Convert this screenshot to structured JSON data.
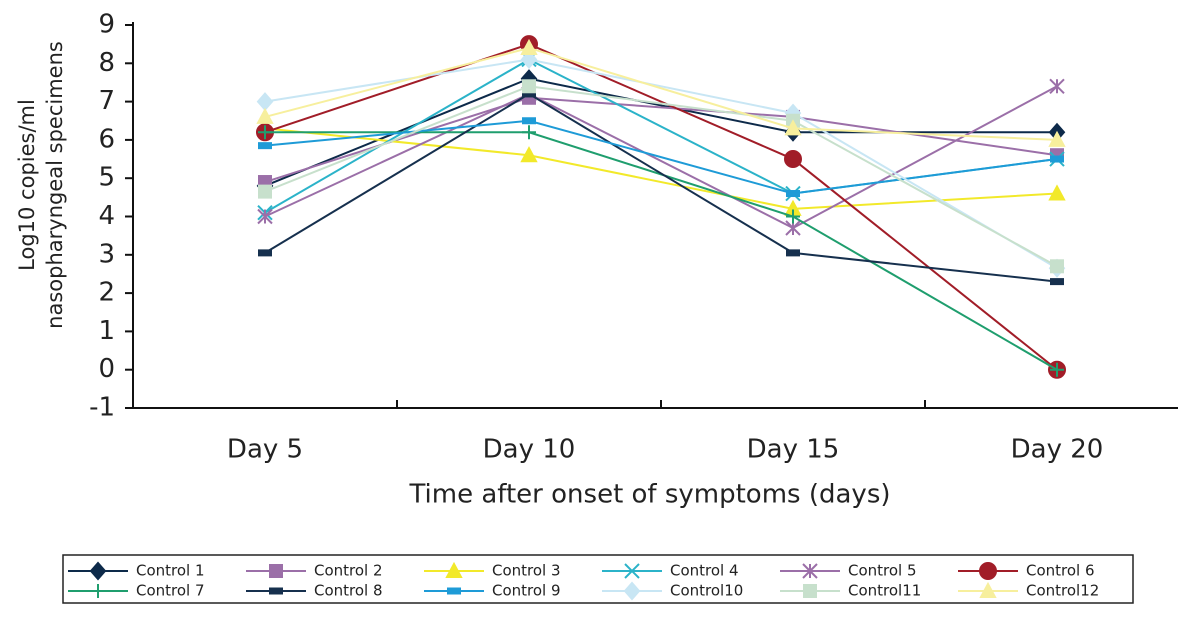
{
  "chart_data": {
    "type": "line",
    "ylabel": [
      "Log10 copies/ml",
      "nasopharyngeal specimens"
    ],
    "xlabel": "Time after onset of symptoms (days)",
    "categories": [
      "Day 5",
      "Day 10",
      "Day 15",
      "Day 20"
    ],
    "ylim": [
      -1,
      9
    ],
    "yticks": [
      -1,
      0,
      1,
      2,
      3,
      4,
      5,
      6,
      7,
      8,
      9
    ],
    "series": [
      {
        "name": "Control 1",
        "color": "#0d2a4a",
        "marker": "diamond",
        "values": [
          4.8,
          7.6,
          6.2,
          6.2
        ]
      },
      {
        "name": "Control 2",
        "color": "#9b6fa8",
        "marker": "square",
        "values": [
          4.9,
          7.1,
          6.6,
          5.6
        ]
      },
      {
        "name": "Control 3",
        "color": "#f2e92a",
        "marker": "triangle",
        "values": [
          6.3,
          5.6,
          4.2,
          4.6
        ]
      },
      {
        "name": "Control 4",
        "color": "#2bb3c9",
        "marker": "x",
        "values": [
          4.1,
          8.1,
          4.6,
          5.5
        ]
      },
      {
        "name": "Control 5",
        "color": "#9b6fa8",
        "marker": "star",
        "values": [
          4.0,
          7.2,
          3.7,
          7.4
        ]
      },
      {
        "name": "Control 6",
        "color": "#a11d28",
        "marker": "circle",
        "values": [
          6.2,
          8.5,
          5.5,
          0
        ]
      },
      {
        "name": "Control 7",
        "color": "#1f9e6e",
        "marker": "plus",
        "values": [
          6.2,
          6.2,
          4.0,
          0
        ]
      },
      {
        "name": "Control 8",
        "color": "#16304e",
        "marker": "dash",
        "values": [
          3.05,
          7.2,
          3.05,
          2.3
        ]
      },
      {
        "name": "Control 9",
        "color": "#1e9bd7",
        "marker": "dash",
        "values": [
          5.85,
          6.5,
          4.6,
          5.5
        ]
      },
      {
        "name": "Control10",
        "color": "#c8e6f4",
        "marker": "diamond",
        "values": [
          7.0,
          8.1,
          6.7,
          2.65
        ]
      },
      {
        "name": "Control11",
        "color": "#c7e0cc",
        "marker": "square",
        "values": [
          4.65,
          7.4,
          6.5,
          2.7
        ]
      },
      {
        "name": "Control12",
        "color": "#f7ef9d",
        "marker": "triangle",
        "values": [
          6.6,
          8.4,
          6.3,
          6.0
        ]
      }
    ]
  }
}
